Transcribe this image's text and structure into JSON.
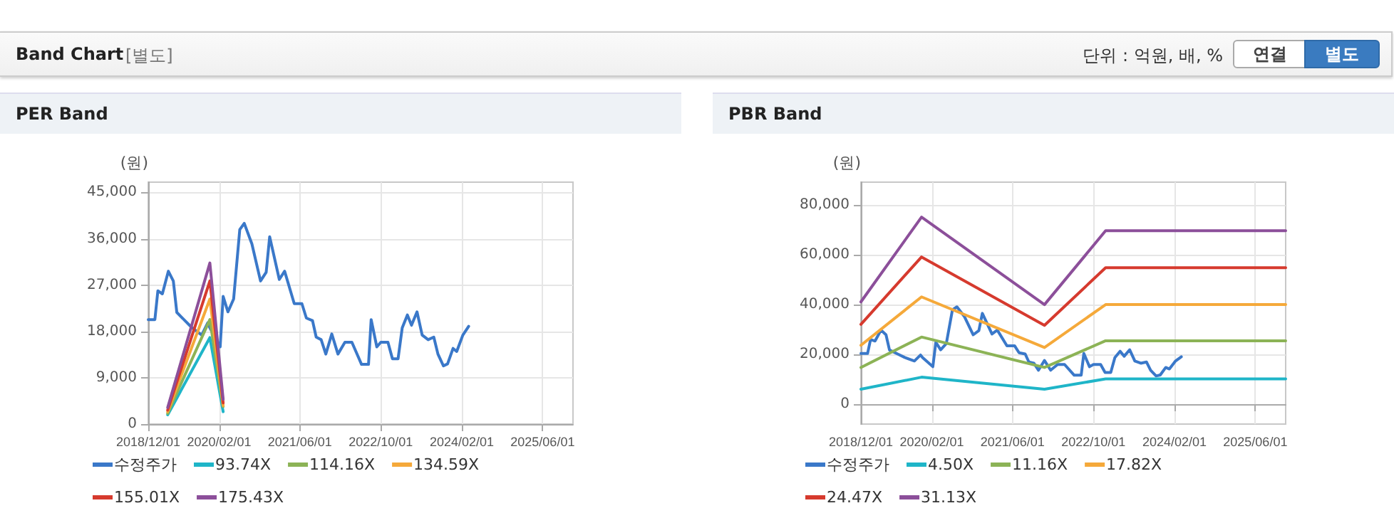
{
  "chart_data": [
    {
      "type": "line",
      "title": "PER Band",
      "ylabel": "(원)",
      "annotations": [
        "Band Chart",
        "[별도]",
        "단위 : 억원, 배, %",
        "연결",
        "별도"
      ],
      "xlim": [
        "2018-12-01",
        "2025-12-01"
      ],
      "xticks": [
        {
          "value": "2018-12-01",
          "label": "2018/12/01"
        },
        {
          "value": "2020-02-01",
          "label": "2020/02/01"
        },
        {
          "value": "2021-06-01",
          "label": "2021/06/01"
        },
        {
          "value": "2022-10-01",
          "label": "2022/10/01"
        },
        {
          "value": "2024-02-01",
          "label": "2024/02/01"
        },
        {
          "value": "2025-06-01",
          "label": "2025/06/01"
        }
      ],
      "ylim": [
        0,
        47000
      ],
      "yticks": [
        0,
        {
          "value": 9000,
          "label": "9,000"
        },
        {
          "value": 18000,
          "label": "18,000"
        },
        {
          "value": 27000,
          "label": "27,000"
        },
        {
          "value": 36000,
          "label": "36,000"
        },
        {
          "value": 45000,
          "label": "45,000"
        }
      ],
      "grid": true,
      "legend": "bottom",
      "series": [
        {
          "name": "수정주가",
          "color": "#3a78c9",
          "x": [
            "2018-12-01",
            "2019-01-10",
            "2019-01-28",
            "2019-02-24",
            "2019-04-01",
            "2019-05-01",
            "2019-05-22",
            "2019-07-10",
            "2019-08-22",
            "2019-10-19",
            "2019-11-25",
            "2019-12-07",
            "2020-02-07",
            "2020-02-25",
            "2020-03-25",
            "2020-04-28",
            "2020-06-04",
            "2020-07-01",
            "2020-08-16",
            "2020-10-07",
            "2020-11-10",
            "2020-12-01",
            "2021-01-28",
            "2021-03-01",
            "2021-04-28",
            "2021-06-13",
            "2021-07-10",
            "2021-08-16",
            "2021-09-07",
            "2021-10-07",
            "2021-11-04",
            "2021-12-10",
            "2022-01-16",
            "2022-02-27",
            "2022-04-10",
            "2022-06-07",
            "2022-07-19",
            "2022-08-04",
            "2022-09-07",
            "2022-10-01",
            "2022-11-13",
            "2022-12-10",
            "2023-01-13",
            "2023-02-07",
            "2023-03-10",
            "2023-04-04",
            "2023-05-07",
            "2023-06-07",
            "2023-07-13",
            "2023-08-16",
            "2023-09-10",
            "2023-10-13",
            "2023-11-07",
            "2023-12-10",
            "2024-01-01",
            "2024-02-07",
            "2024-03-13"
          ],
          "values": [
            20300,
            20300,
            25900,
            25300,
            29700,
            27800,
            21700,
            20100,
            18700,
            17300,
            19700,
            18700,
            15000,
            24800,
            21800,
            24300,
            37800,
            39000,
            35000,
            27800,
            29500,
            36400,
            28100,
            29700,
            23400,
            23400,
            20600,
            20100,
            16900,
            16400,
            13600,
            17500,
            13600,
            15900,
            15900,
            11600,
            11600,
            20300,
            15000,
            15900,
            15900,
            12700,
            12700,
            18700,
            21200,
            19200,
            21800,
            17300,
            16400,
            16900,
            13600,
            11300,
            11700,
            14700,
            14100,
            17300,
            19000
          ]
        },
        {
          "name": "93.74X",
          "color": "#1fb5c8",
          "x": [
            "2019-03-28",
            "2019-12-07",
            "2020-02-25"
          ],
          "values": [
            1800,
            16800,
            2400
          ]
        },
        {
          "name": "114.16X",
          "color": "#8cb356",
          "x": [
            "2019-03-28",
            "2019-12-07",
            "2020-02-25"
          ],
          "values": [
            2100,
            20300,
            3400
          ]
        },
        {
          "name": "134.59X",
          "color": "#f5a93a",
          "x": [
            "2019-03-28",
            "2019-12-07",
            "2020-02-25"
          ],
          "values": [
            2400,
            24300,
            3600
          ]
        },
        {
          "name": "155.01X",
          "color": "#d63a2e",
          "x": [
            "2019-03-28",
            "2019-12-07",
            "2020-02-25"
          ],
          "values": [
            2700,
            27800,
            4100
          ]
        },
        {
          "name": "175.43X",
          "color": "#8c4f9a",
          "x": [
            "2019-03-28",
            "2019-12-07",
            "2020-02-25"
          ],
          "values": [
            3200,
            31300,
            4800
          ]
        }
      ]
    },
    {
      "type": "line",
      "title": "PBR Band",
      "ylabel": "(원)",
      "xlim": [
        "2018-12-01",
        "2025-12-01"
      ],
      "xticks": [
        {
          "value": "2018-12-01",
          "label": "2018/12/01"
        },
        {
          "value": "2020-02-01",
          "label": "2020/02/01"
        },
        {
          "value": "2021-06-01",
          "label": "2021/06/01"
        },
        {
          "value": "2022-10-01",
          "label": "2022/10/01"
        },
        {
          "value": "2024-02-01",
          "label": "2024/02/01"
        },
        {
          "value": "2025-06-01",
          "label": "2025/06/01"
        }
      ],
      "ylim": [
        -8000,
        89000
      ],
      "yticks": [
        0,
        {
          "value": 20000,
          "label": "20,000"
        },
        {
          "value": 40000,
          "label": "40,000"
        },
        {
          "value": 60000,
          "label": "60,000"
        },
        {
          "value": 80000,
          "label": "80,000"
        }
      ],
      "grid": true,
      "legend": "bottom",
      "series": [
        {
          "name": "수정주가",
          "color": "#3a78c9",
          "x": [
            "2018-12-01",
            "2019-01-10",
            "2019-01-28",
            "2019-02-24",
            "2019-04-01",
            "2019-05-01",
            "2019-05-22",
            "2019-07-10",
            "2019-08-22",
            "2019-10-19",
            "2019-11-25",
            "2019-12-07",
            "2020-02-07",
            "2020-02-25",
            "2020-03-25",
            "2020-04-28",
            "2020-06-04",
            "2020-07-01",
            "2020-08-16",
            "2020-10-07",
            "2020-11-10",
            "2020-12-01",
            "2021-01-28",
            "2021-03-01",
            "2021-04-28",
            "2021-06-13",
            "2021-07-10",
            "2021-08-16",
            "2021-09-07",
            "2021-10-07",
            "2021-11-04",
            "2021-12-10",
            "2022-01-16",
            "2022-02-27",
            "2022-04-10",
            "2022-06-07",
            "2022-07-19",
            "2022-08-04",
            "2022-09-07",
            "2022-10-01",
            "2022-11-13",
            "2022-12-10",
            "2023-01-13",
            "2023-02-07",
            "2023-03-10",
            "2023-04-04",
            "2023-05-07",
            "2023-06-07",
            "2023-07-13",
            "2023-08-16",
            "2023-09-10",
            "2023-10-13",
            "2023-11-07",
            "2023-12-10",
            "2024-01-01",
            "2024-02-07",
            "2024-03-13"
          ],
          "values": [
            20300,
            20300,
            25900,
            25300,
            29700,
            27800,
            21700,
            20100,
            18700,
            17300,
            19700,
            18700,
            15000,
            24800,
            21800,
            24300,
            37800,
            39000,
            35000,
            27800,
            29500,
            36400,
            28100,
            29700,
            23400,
            23400,
            20600,
            20100,
            16900,
            16400,
            13600,
            17500,
            13600,
            15900,
            15900,
            11600,
            11600,
            20300,
            15000,
            15900,
            15900,
            12700,
            12700,
            18700,
            21200,
            19200,
            21800,
            17300,
            16400,
            16900,
            13600,
            11300,
            11700,
            14700,
            14100,
            17300,
            19000
          ]
        },
        {
          "name": "4.50X",
          "color": "#1fb5c8",
          "x": [
            "2018-12-01",
            "2019-12-01",
            "2021-12-10",
            "2022-12-13",
            "2025-12-01"
          ],
          "values": [
            6000,
            10800,
            6000,
            10100,
            10100
          ]
        },
        {
          "name": "11.16X",
          "color": "#8cb356",
          "x": [
            "2018-12-01",
            "2019-12-01",
            "2021-12-10",
            "2022-12-13",
            "2025-12-01"
          ],
          "values": [
            14700,
            26900,
            14700,
            25400,
            25400
          ]
        },
        {
          "name": "17.82X",
          "color": "#f5a93a",
          "x": [
            "2018-12-01",
            "2019-12-01",
            "2021-12-10",
            "2022-12-13",
            "2025-12-01"
          ],
          "values": [
            23600,
            43000,
            22700,
            39900,
            39900
          ]
        },
        {
          "name": "24.47X",
          "color": "#d63a2e",
          "x": [
            "2018-12-01",
            "2019-12-01",
            "2021-12-10",
            "2022-12-13",
            "2025-12-01"
          ],
          "values": [
            32000,
            59000,
            31600,
            54700,
            54700
          ]
        },
        {
          "name": "31.13X",
          "color": "#8c4f9a",
          "x": [
            "2018-12-01",
            "2019-12-01",
            "2021-12-10",
            "2022-12-13",
            "2025-12-01"
          ],
          "values": [
            41000,
            75000,
            39900,
            69500,
            69500
          ]
        }
      ]
    }
  ]
}
